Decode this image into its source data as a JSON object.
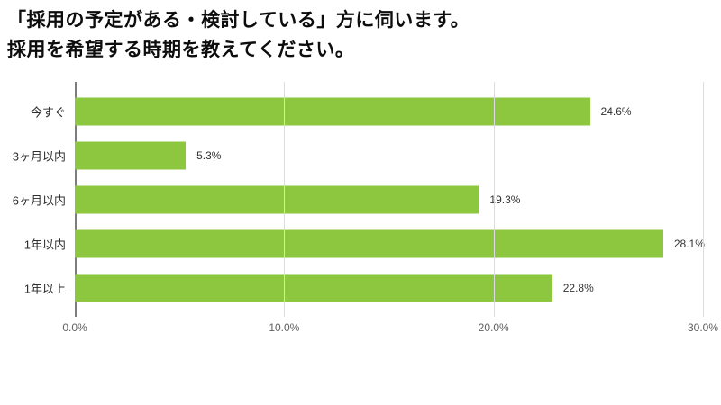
{
  "title": {
    "line1": "「採用の予定がある・検討している」方に伺います。",
    "line2": "採用を希望する時期を教えてください。"
  },
  "chart_data": {
    "type": "bar",
    "orientation": "horizontal",
    "title": "「採用の予定がある・検討している」方に伺います。採用を希望する時期を教えてください。",
    "categories": [
      "今すぐ",
      "3ヶ月以内",
      "6ヶ月以内",
      "1年以内",
      "1年以上"
    ],
    "values": [
      24.6,
      5.3,
      19.3,
      28.1,
      22.8
    ],
    "value_labels": [
      "24.6%",
      "5.3%",
      "19.3%",
      "28.1%",
      "22.8%"
    ],
    "xlabel": "",
    "ylabel": "",
    "xlim": [
      0,
      30
    ],
    "x_ticks": [
      0,
      10,
      20,
      30
    ],
    "x_tick_labels": [
      "0.0%",
      "10.0%",
      "20.0%",
      "30.0%"
    ],
    "grid": true,
    "legend": "none",
    "bar_color": "#8dc63f",
    "axis_color": "#7d7d7d",
    "grid_color": "#dcdcdc",
    "background": "#ffffff"
  }
}
